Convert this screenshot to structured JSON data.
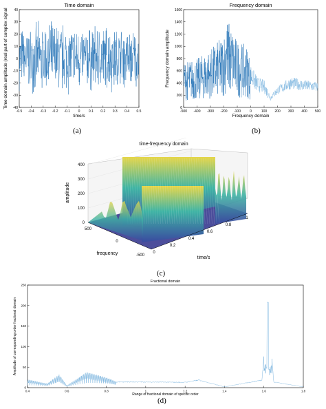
{
  "captions": {
    "a": "(a)",
    "b": "(b)",
    "c": "(c)",
    "d": "(d)"
  },
  "colors": {
    "signal": "#1f6fb4",
    "signal_light": "#7fb7e0",
    "axis": "#000000",
    "surface_top": "#e6d64a",
    "surface_mid": "#3fb4a4",
    "surface_low": "#3a4aa0",
    "surface_floor": "#2d2f8a"
  },
  "chart_data": [
    {
      "id": "a",
      "type": "line",
      "title": "Time domain",
      "xlabel": "time/s",
      "ylabel": "Time domain amplitude (real part of complex signal",
      "xlim": [
        -0.5,
        0.5
      ],
      "ylim": [
        -40,
        40
      ],
      "xticks": [
        "-0.5",
        "-0.4",
        "-0.3",
        "-0.2",
        "-0.1",
        "0",
        "0.1",
        "0.2",
        "0.3",
        "0.4",
        "0.5"
      ],
      "yticks": [
        "-40",
        "-30",
        "-20",
        "-10",
        "0",
        "10",
        "20",
        "30",
        "40"
      ],
      "series": [
        {
          "envelope": [
            [
              -0.5,
              28
            ],
            [
              -0.4,
              30
            ],
            [
              -0.3,
              33
            ],
            [
              -0.2,
              34
            ],
            [
              -0.1,
              33
            ],
            [
              0,
              30
            ],
            [
              0.1,
              30
            ],
            [
              0.2,
              32
            ],
            [
              0.3,
              30
            ],
            [
              0.4,
              28
            ],
            [
              0.5,
              27
            ]
          ]
        }
      ]
    },
    {
      "id": "b",
      "type": "line",
      "title": "Frequency domain",
      "xlabel": "Frequency domain",
      "ylabel": "Frequency domain amplitude",
      "xlim": [
        -500,
        500
      ],
      "ylim": [
        0,
        1600
      ],
      "xticks": [
        "-500",
        "-400",
        "-300",
        "-200",
        "-100",
        "0",
        "100",
        "200",
        "300",
        "400",
        "500"
      ],
      "yticks": [
        "0",
        "200",
        "400",
        "600",
        "800",
        "1000",
        "1200",
        "1400",
        "1600"
      ],
      "series": [
        {
          "envelope": [
            [
              -500,
              750
            ],
            [
              -400,
              800
            ],
            [
              -300,
              950
            ],
            [
              -200,
              1200
            ],
            [
              -180,
              1500
            ],
            [
              -100,
              1100
            ],
            [
              -20,
              1000
            ],
            [
              0,
              700
            ],
            [
              50,
              500
            ],
            [
              100,
              450
            ],
            [
              150,
              200
            ],
            [
              200,
              350
            ],
            [
              300,
              500
            ],
            [
              400,
              450
            ],
            [
              500,
              420
            ]
          ]
        }
      ]
    },
    {
      "id": "c",
      "type": "area",
      "title": "time-frequency domain",
      "xlabel": "time/s",
      "ylabel": "frequency",
      "zlabel": "amplitude",
      "xticks": [
        "0",
        "0.2",
        "0.4",
        "0.6",
        "0.8",
        "1"
      ],
      "yticks": [
        "-500",
        "0",
        "500"
      ],
      "zticks": [
        "0",
        "100",
        "200",
        "300",
        "400"
      ],
      "zlim": [
        0,
        400
      ],
      "series": [
        {
          "name": "",
          "peak_plateaus": [
            400,
            250
          ]
        }
      ]
    },
    {
      "id": "d",
      "type": "line",
      "title": "Fractional domain",
      "xlabel": "Range of fractional domain of specific order",
      "ylabel": "Amplitude of corresponding order fractional domain",
      "xlim": [
        0.4,
        1.8
      ],
      "ylim": [
        0,
        250
      ],
      "xticks": [
        "0.4",
        "0.6",
        "0.8",
        "1",
        "1.2",
        "1.4",
        "1.6",
        "1.8"
      ],
      "yticks": [
        "0",
        "50",
        "100",
        "150",
        "200",
        "250"
      ],
      "series": [
        {
          "peaks": [
            [
              0.4,
              20
            ],
            [
              0.5,
              10
            ],
            [
              0.56,
              32
            ],
            [
              0.6,
              5
            ],
            [
              0.7,
              38
            ],
            [
              0.8,
              25
            ],
            [
              0.85,
              15
            ],
            [
              1.0,
              15
            ],
            [
              1.2,
              14
            ],
            [
              1.27,
              20
            ],
            [
              1.4,
              2
            ],
            [
              1.59,
              20
            ],
            [
              1.62,
              208
            ],
            [
              1.65,
              15
            ],
            [
              1.8,
              2
            ]
          ]
        }
      ]
    }
  ]
}
